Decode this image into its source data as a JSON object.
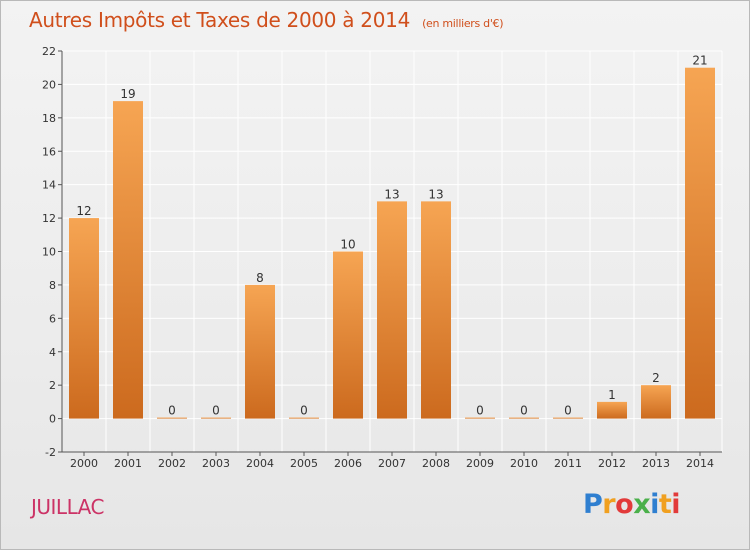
{
  "header": {
    "title": "Autres Impôts et Taxes de 2000 à 2014",
    "subtitle": "(en milliers d'€)"
  },
  "footer": {
    "commune": "JUILLAC",
    "logo_letters": [
      "P",
      "r",
      "o",
      "x",
      "i",
      "t",
      "i"
    ],
    "logo_colors": [
      "#2f7fd0",
      "#f0a020",
      "#e23a3a",
      "#4ab04a",
      "#2f7fd0",
      "#f0a020",
      "#e23a3a"
    ]
  },
  "colors": {
    "bar_top": "#f6a553",
    "bar_bottom": "#cc6a1e",
    "axis": "#555555",
    "grid": "#ffffff"
  },
  "chart_data": {
    "type": "bar",
    "title": "Autres Impôts et Taxes de 2000 à 2014",
    "subtitle": "(en milliers d'€)",
    "categories": [
      "2000",
      "2001",
      "2002",
      "2003",
      "2004",
      "2005",
      "2006",
      "2007",
      "2008",
      "2009",
      "2010",
      "2011",
      "2012",
      "2013",
      "2014"
    ],
    "values": [
      12,
      19,
      0,
      0,
      8,
      0,
      10,
      13,
      13,
      0,
      0,
      0,
      1,
      2,
      21
    ],
    "ylim": [
      -2,
      22
    ],
    "yticks": [
      -2,
      0,
      2,
      4,
      6,
      8,
      10,
      12,
      14,
      16,
      18,
      20,
      22
    ],
    "grid": true,
    "legend": "none"
  }
}
